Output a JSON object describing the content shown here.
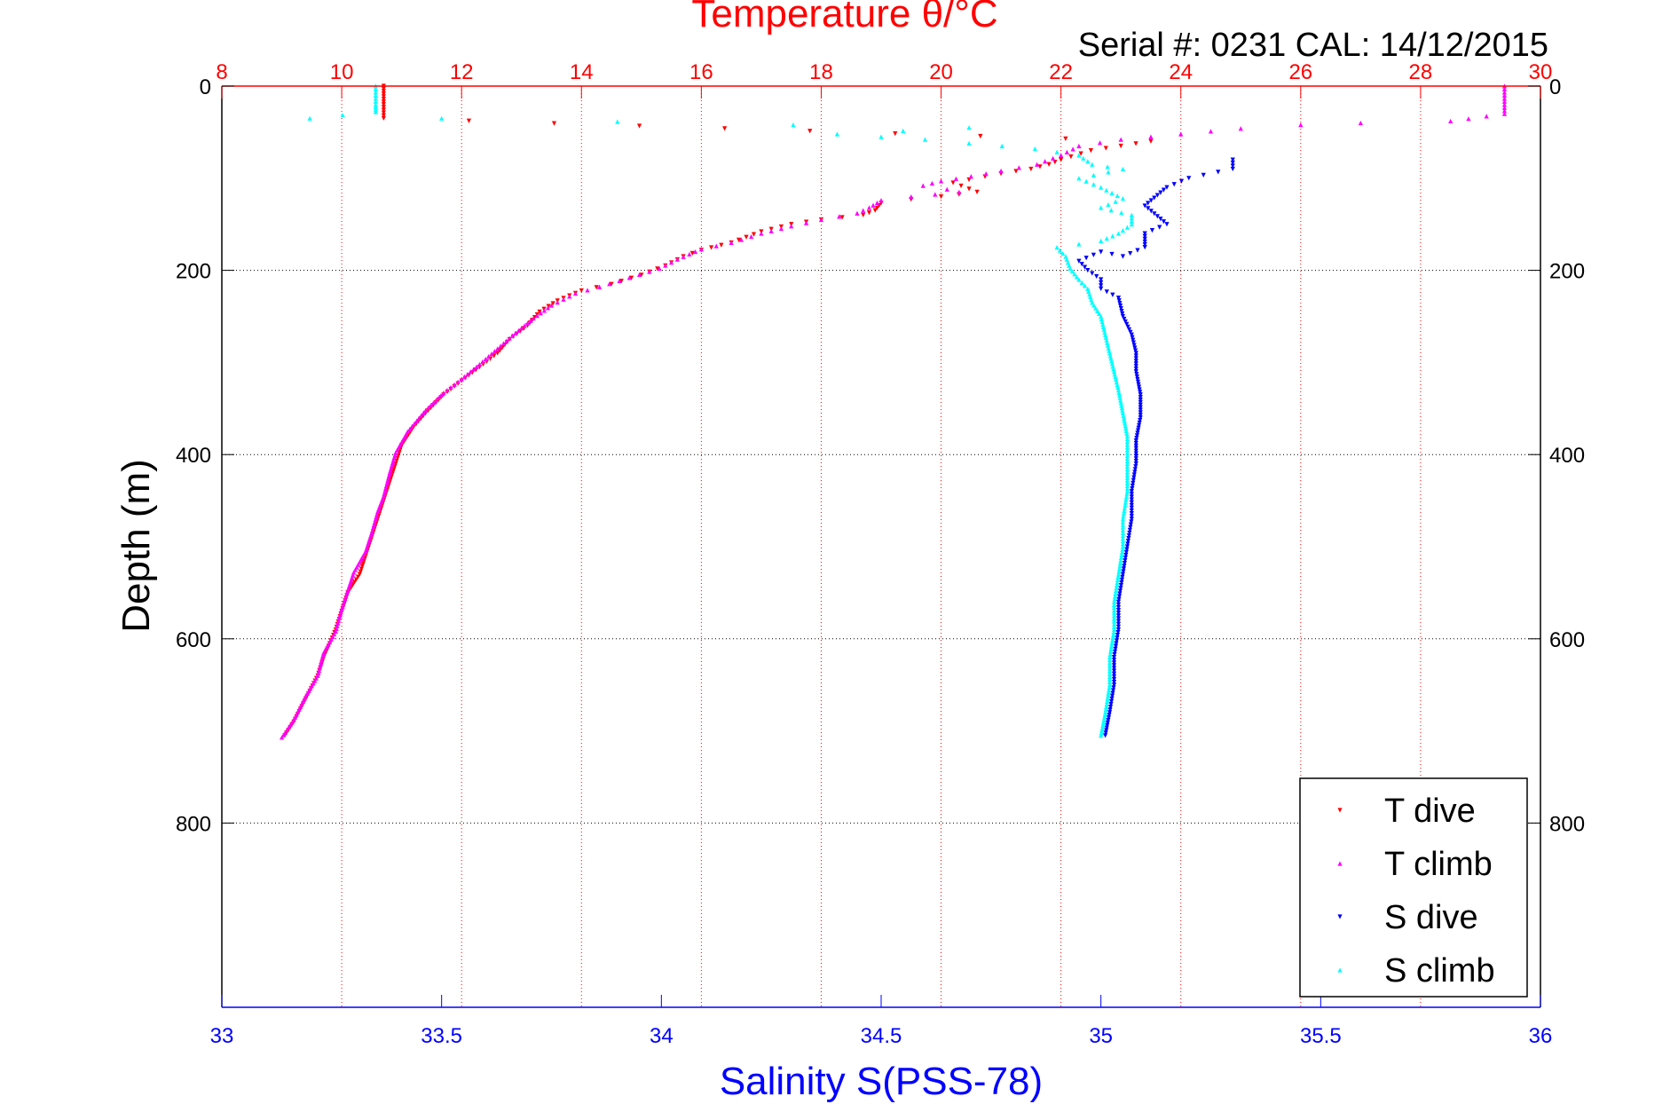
{
  "chart_data": {
    "type": "scatter",
    "title": "Temperature θ/°C",
    "subtitle": "Serial #: 0231  CAL: 14/12/2015",
    "xlabel": "Salinity S(PSS-78)",
    "ylabel": "Depth (m)",
    "temperature_axis": {
      "range": [
        8,
        30
      ],
      "ticks": [
        "8",
        "10",
        "12",
        "14",
        "16",
        "18",
        "20",
        "22",
        "24",
        "26",
        "28",
        "30"
      ]
    },
    "salinity_axis": {
      "range": [
        33,
        36
      ],
      "ticks": [
        "33",
        "33.5",
        "34",
        "34.5",
        "35",
        "35.5",
        "36"
      ]
    },
    "depth_axis": {
      "range": [
        0,
        1000
      ],
      "reversed": true,
      "ticks": [
        "0",
        "200",
        "400",
        "600",
        "800"
      ]
    },
    "grid": true,
    "legend_position": "bottom-right",
    "colors": {
      "t_dive": "#ff0000",
      "t_climb": "#ff00ff",
      "s_dive": "#0000ff",
      "s_climb": "#00ffff",
      "temp_axis": "#ff0000",
      "sal_axis": "#0000ff"
    },
    "series": [
      {
        "name": "T dive",
        "axis": "temperature",
        "marker": "triangle-down",
        "points": [
          [
            10.7,
            0
          ],
          [
            10.7,
            20
          ],
          [
            10.7,
            35
          ],
          [
            23.5,
            60
          ],
          [
            23,
            65
          ],
          [
            22.5,
            70
          ],
          [
            22,
            80
          ],
          [
            21.8,
            85
          ],
          [
            21.5,
            90
          ],
          [
            21,
            95
          ],
          [
            20.2,
            105
          ],
          [
            20.6,
            115
          ],
          [
            20,
            120
          ],
          [
            19.5,
            123
          ],
          [
            19,
            127
          ],
          [
            18.9,
            135
          ],
          [
            18.7,
            140
          ],
          [
            18,
            145
          ],
          [
            17.5,
            150
          ],
          [
            17,
            158
          ],
          [
            16.5,
            170
          ],
          [
            16,
            178
          ],
          [
            15.7,
            185
          ],
          [
            15.4,
            195
          ],
          [
            15,
            205
          ],
          [
            14.5,
            215
          ],
          [
            14,
            222
          ],
          [
            13.6,
            233
          ],
          [
            13.3,
            245
          ],
          [
            13.1,
            260
          ],
          [
            12.8,
            275
          ],
          [
            12.6,
            290
          ],
          [
            12.3,
            305
          ],
          [
            12,
            320
          ],
          [
            11.7,
            335
          ],
          [
            11.4,
            355
          ],
          [
            11.2,
            370
          ],
          [
            11,
            390
          ],
          [
            10.9,
            410
          ],
          [
            10.8,
            430
          ],
          [
            10.7,
            450
          ],
          [
            10.6,
            470
          ],
          [
            10.5,
            490
          ],
          [
            10.4,
            510
          ],
          [
            10.3,
            530
          ],
          [
            10.1,
            550
          ],
          [
            10,
            570
          ],
          [
            9.9,
            590
          ],
          [
            9.7,
            620
          ],
          [
            9.6,
            640
          ],
          [
            9.4,
            665
          ],
          [
            9.2,
            690
          ],
          [
            9.05,
            705
          ]
        ]
      },
      {
        "name": "T climb",
        "axis": "temperature",
        "marker": "triangle-up",
        "points": [
          [
            29.4,
            0
          ],
          [
            29.4,
            10
          ],
          [
            29.4,
            20
          ],
          [
            29.4,
            30
          ],
          [
            28.5,
            38
          ],
          [
            27,
            40
          ],
          [
            26,
            42
          ],
          [
            25,
            46
          ],
          [
            24,
            52
          ],
          [
            23,
            58
          ],
          [
            22.3,
            65
          ],
          [
            22,
            75
          ],
          [
            21.6,
            85
          ],
          [
            21,
            92
          ],
          [
            20.5,
            98
          ],
          [
            20,
            103
          ],
          [
            19.7,
            108
          ],
          [
            20.1,
            112
          ],
          [
            20.3,
            115
          ],
          [
            19.5,
            120
          ],
          [
            19,
            124
          ],
          [
            18.8,
            132
          ],
          [
            18.6,
            138
          ],
          [
            18,
            145
          ],
          [
            17.5,
            152
          ],
          [
            17,
            160
          ],
          [
            16.5,
            170
          ],
          [
            16,
            177
          ],
          [
            15.6,
            188
          ],
          [
            15.3,
            198
          ],
          [
            14.8,
            208
          ],
          [
            14.3,
            218
          ],
          [
            13.9,
            225
          ],
          [
            13.5,
            238
          ],
          [
            13.2,
            252
          ],
          [
            12.9,
            268
          ],
          [
            12.6,
            285
          ],
          [
            12.3,
            302
          ],
          [
            12,
            318
          ],
          [
            11.7,
            333
          ],
          [
            11.4,
            352
          ],
          [
            11.1,
            375
          ],
          [
            10.9,
            398
          ],
          [
            10.8,
            420
          ],
          [
            10.7,
            445
          ],
          [
            10.6,
            462
          ],
          [
            10.5,
            485
          ],
          [
            10.4,
            505
          ],
          [
            10.2,
            528
          ],
          [
            10.1,
            548
          ],
          [
            10,
            568
          ],
          [
            9.9,
            592
          ],
          [
            9.7,
            615
          ],
          [
            9.6,
            640
          ],
          [
            9.4,
            662
          ],
          [
            9.2,
            688
          ],
          [
            9,
            707
          ]
        ]
      },
      {
        "name": "S dive",
        "axis": "salinity",
        "marker": "triangle-down",
        "points": [
          [
            35.3,
            80
          ],
          [
            35.3,
            90
          ],
          [
            35.2,
            100
          ],
          [
            35.15,
            110
          ],
          [
            35.1,
            130
          ],
          [
            35.15,
            150
          ],
          [
            35.1,
            160
          ],
          [
            35.1,
            175
          ],
          [
            35.05,
            185
          ],
          [
            35.0,
            180
          ],
          [
            34.95,
            190
          ],
          [
            34.97,
            200
          ],
          [
            35.0,
            210
          ],
          [
            35.0,
            220
          ],
          [
            35.04,
            230
          ],
          [
            35.05,
            250
          ],
          [
            35.07,
            270
          ],
          [
            35.08,
            290
          ],
          [
            35.08,
            310
          ],
          [
            35.09,
            335
          ],
          [
            35.09,
            360
          ],
          [
            35.08,
            385
          ],
          [
            35.08,
            410
          ],
          [
            35.07,
            440
          ],
          [
            35.07,
            470
          ],
          [
            35.06,
            500
          ],
          [
            35.05,
            530
          ],
          [
            35.04,
            560
          ],
          [
            35.04,
            590
          ],
          [
            35.03,
            620
          ],
          [
            35.03,
            650
          ],
          [
            35.02,
            680
          ],
          [
            35.01,
            705
          ]
        ]
      },
      {
        "name": "S climb",
        "axis": "salinity",
        "marker": "triangle-up",
        "points": [
          [
            33.35,
            0
          ],
          [
            33.35,
            10
          ],
          [
            33.35,
            20
          ],
          [
            33.35,
            28
          ],
          [
            33.2,
            35
          ],
          [
            33.5,
            35
          ],
          [
            34.3,
            42
          ],
          [
            34.7,
            45
          ],
          [
            34.4,
            52
          ],
          [
            34.6,
            58
          ],
          [
            34.7,
            62
          ],
          [
            34.85,
            68
          ],
          [
            34.95,
            75
          ],
          [
            34.98,
            85
          ],
          [
            35.05,
            90
          ],
          [
            34.95,
            100
          ],
          [
            35.0,
            110
          ],
          [
            35.05,
            122
          ],
          [
            35.0,
            132
          ],
          [
            35.07,
            140
          ],
          [
            35.07,
            150
          ],
          [
            35.04,
            160
          ],
          [
            35.0,
            168
          ],
          [
            34.9,
            175
          ],
          [
            34.92,
            185
          ],
          [
            34.93,
            198
          ],
          [
            34.95,
            210
          ],
          [
            34.97,
            220
          ],
          [
            34.98,
            235
          ],
          [
            35.0,
            250
          ],
          [
            35.01,
            270
          ],
          [
            35.02,
            290
          ],
          [
            35.03,
            310
          ],
          [
            35.04,
            330
          ],
          [
            35.05,
            355
          ],
          [
            35.06,
            380
          ],
          [
            35.06,
            410
          ],
          [
            35.06,
            440
          ],
          [
            35.05,
            470
          ],
          [
            35.05,
            500
          ],
          [
            35.04,
            530
          ],
          [
            35.03,
            560
          ],
          [
            35.03,
            590
          ],
          [
            35.02,
            620
          ],
          [
            35.02,
            650
          ],
          [
            35.01,
            680
          ],
          [
            35.0,
            705
          ]
        ]
      }
    ]
  }
}
